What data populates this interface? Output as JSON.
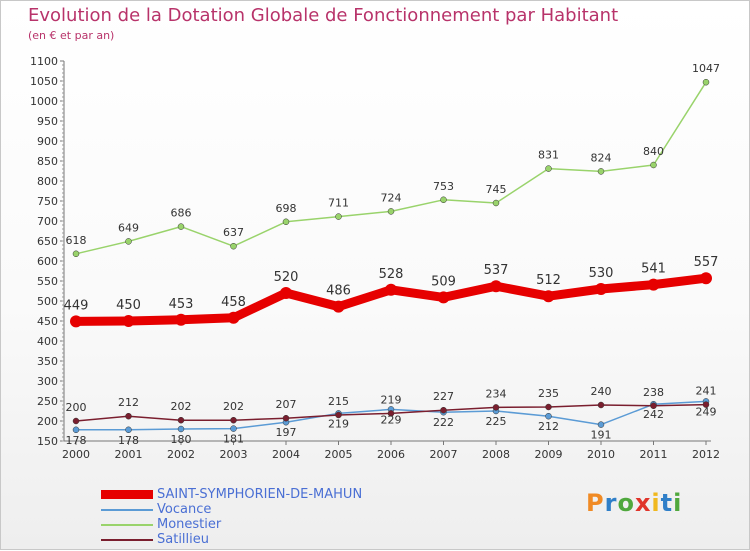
{
  "title": "Evolution de la Dotation Globale de Fonctionnement par Habitant",
  "subtitle": "(en € et par an)",
  "logo": {
    "letters": [
      {
        "ch": "P",
        "color": "#f08a24"
      },
      {
        "ch": "r",
        "color": "#2f7fc8"
      },
      {
        "ch": "o",
        "color": "#4fa83d"
      },
      {
        "ch": "x",
        "color": "#e0342a"
      },
      {
        "ch": "i",
        "color": "#f0b81e"
      },
      {
        "ch": "t",
        "color": "#2f7fc8"
      },
      {
        "ch": "i",
        "color": "#4fa83d"
      }
    ]
  },
  "chart_data": {
    "type": "line",
    "title": "Evolution de la Dotation Globale de Fonctionnement par Habitant",
    "subtitle": "(en € et par an)",
    "x": [
      "2000",
      "2001",
      "2002",
      "2003",
      "2004",
      "2005",
      "2006",
      "2007",
      "2008",
      "2009",
      "2010",
      "2011",
      "2012"
    ],
    "ylim": [
      150,
      1100
    ],
    "yticks": [
      150,
      200,
      250,
      300,
      350,
      400,
      450,
      500,
      550,
      600,
      650,
      700,
      750,
      800,
      850,
      900,
      950,
      1000,
      1050,
      1100
    ],
    "grid": false,
    "legend": "bottom-left",
    "series": [
      {
        "name": "SAINT-SYMPHORIEN-DE-MAHUN",
        "color": "#e60000",
        "values": [
          449,
          450,
          453,
          458,
          520,
          486,
          528,
          509,
          537,
          512,
          530,
          541,
          557
        ]
      },
      {
        "name": "Vocance",
        "color": "#5b9bd5",
        "values": [
          178,
          178,
          180,
          181,
          197,
          219,
          229,
          222,
          225,
          212,
          191,
          242,
          249
        ]
      },
      {
        "name": "Monestier",
        "color": "#99d36b",
        "values": [
          618,
          649,
          686,
          637,
          698,
          711,
          724,
          753,
          745,
          831,
          824,
          840,
          1047
        ]
      },
      {
        "name": "Satillieu",
        "color": "#7a1e2e",
        "values": [
          200,
          212,
          202,
          202,
          207,
          215,
          219,
          227,
          234,
          235,
          240,
          238,
          241
        ]
      }
    ]
  }
}
